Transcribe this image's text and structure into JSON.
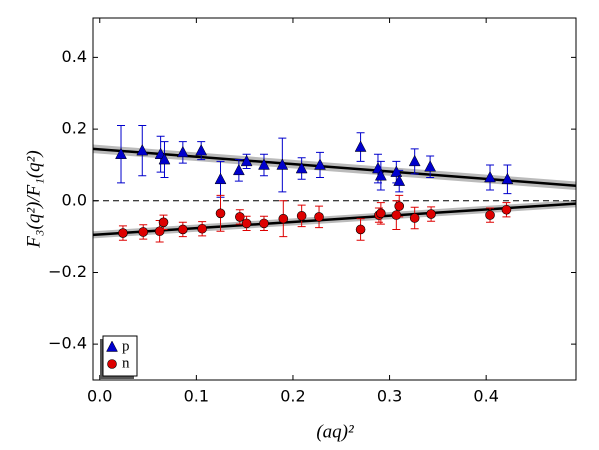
{
  "chart_data": {
    "type": "scatter",
    "xlabel": "(aq)²",
    "ylabel": "F₃(q²)/F₁(q²)",
    "xlim": [
      -0.007,
      0.493
    ],
    "ylim": [
      -0.5,
      0.51
    ],
    "xticks": [
      {
        "value": 0,
        "label": "0.0"
      },
      {
        "value": 0.1,
        "label": "0.1"
      },
      {
        "value": 0.2,
        "label": "0.2"
      },
      {
        "value": 0.3,
        "label": "0.3"
      },
      {
        "value": 0.4,
        "label": "0.4"
      }
    ],
    "yticks": [
      {
        "value": -0.4,
        "label": "−0.4"
      },
      {
        "value": -0.2,
        "label": "−0.2"
      },
      {
        "value": 0,
        "label": "0.0"
      },
      {
        "value": 0.2,
        "label": "0.2"
      },
      {
        "value": 0.4,
        "label": "0.4"
      }
    ],
    "hline": 0,
    "legend": "lower left",
    "series": [
      {
        "name": "p",
        "color": "#0000cc",
        "marker": "triangle",
        "x": [
          0.022,
          0.044,
          0.063,
          0.067,
          0.086,
          0.105,
          0.125,
          0.144,
          0.152,
          0.17,
          0.189,
          0.209,
          0.228,
          0.27,
          0.288,
          0.291,
          0.307,
          0.31,
          0.326,
          0.342,
          0.404,
          0.422
        ],
        "values": [
          0.13,
          0.14,
          0.13,
          0.115,
          0.135,
          0.14,
          0.06,
          0.085,
          0.11,
          0.1,
          0.1,
          0.09,
          0.1,
          0.15,
          0.09,
          0.07,
          0.08,
          0.055,
          0.11,
          0.095,
          0.065,
          0.06
        ],
        "errors": [
          0.08,
          0.07,
          0.05,
          0.05,
          0.03,
          0.025,
          0.05,
          0.03,
          0.02,
          0.03,
          0.075,
          0.03,
          0.035,
          0.04,
          0.04,
          0.04,
          0.03,
          0.03,
          0.035,
          0.03,
          0.035,
          0.04
        ]
      },
      {
        "name": "n",
        "color": "#dd0000",
        "marker": "circle",
        "x": [
          0.024,
          0.045,
          0.062,
          0.066,
          0.086,
          0.106,
          0.125,
          0.145,
          0.152,
          0.17,
          0.19,
          0.209,
          0.227,
          0.27,
          0.289,
          0.291,
          0.307,
          0.31,
          0.326,
          0.343,
          0.404,
          0.421
        ],
        "values": [
          -0.09,
          -0.087,
          -0.085,
          -0.06,
          -0.08,
          -0.078,
          -0.035,
          -0.045,
          -0.063,
          -0.063,
          -0.05,
          -0.042,
          -0.045,
          -0.08,
          -0.04,
          -0.035,
          -0.04,
          -0.015,
          -0.048,
          -0.037,
          -0.04,
          -0.025
        ],
        "errors": [
          0.02,
          0.02,
          0.03,
          0.02,
          0.02,
          0.02,
          0.05,
          0.02,
          0.02,
          0.02,
          0.05,
          0.03,
          0.03,
          0.03,
          0.02,
          0.03,
          0.04,
          0.03,
          0.03,
          0.02,
          0.02,
          0.02
        ]
      }
    ],
    "fits": [
      {
        "x": [
          -0.007,
          0.493
        ],
        "values": [
          0.145,
          0.042
        ],
        "band": 0.012
      },
      {
        "x": [
          -0.007,
          0.493
        ],
        "values": [
          -0.095,
          -0.008
        ],
        "band": 0.01
      }
    ]
  }
}
